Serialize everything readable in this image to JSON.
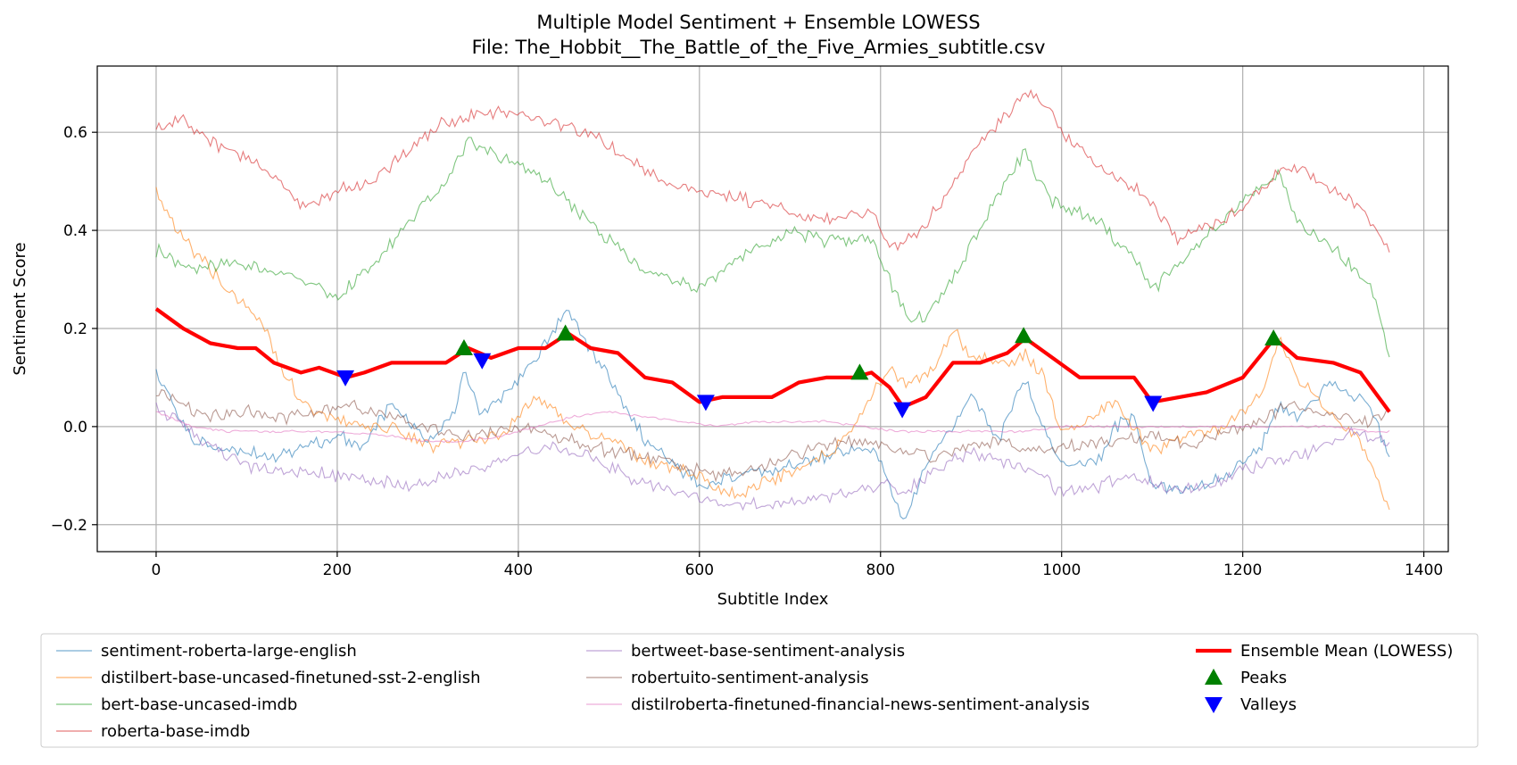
{
  "chart_data": {
    "type": "line",
    "title": "Multiple Model Sentiment + Ensemble LOWESS",
    "subtitle": "File: The_Hobbit__The_Battle_of_the_Five_Armies_subtitle.csv",
    "xlabel": "Subtitle Index",
    "ylabel": "Sentiment Score",
    "xlim": [
      -65,
      1427
    ],
    "ylim": [
      -0.255,
      0.735
    ],
    "xticks": [
      0,
      200,
      400,
      600,
      800,
      1000,
      1200,
      1400
    ],
    "xtick_labels": [
      "0",
      "200",
      "400",
      "600",
      "800",
      "1000",
      "1200",
      "1400"
    ],
    "yticks": [
      -0.2,
      0.0,
      0.2,
      0.4,
      0.6
    ],
    "ytick_labels": [
      "−0.2",
      "0.0",
      "0.2",
      "0.4",
      "0.6"
    ],
    "grid": true,
    "legend_position": "bottom",
    "series": [
      {
        "name": "sentiment-roberta-large-english",
        "color": "#1f77b4",
        "x": [
          0,
          40,
          80,
          120,
          160,
          200,
          230,
          260,
          300,
          330,
          340,
          360,
          400,
          420,
          455,
          470,
          500,
          540,
          600,
          640,
          680,
          720,
          760,
          790,
          810,
          825,
          850,
          880,
          900,
          930,
          958,
          980,
          1000,
          1040,
          1060,
          1080,
          1100,
          1140,
          1180,
          1220,
          1240,
          1260,
          1300,
          1340,
          1362
        ],
        "values": [
          0.11,
          -0.03,
          -0.04,
          -0.06,
          -0.05,
          -0.02,
          -0.04,
          0.05,
          -0.03,
          0.03,
          0.11,
          0.02,
          0.1,
          0.14,
          0.24,
          0.18,
          0.1,
          -0.03,
          -0.12,
          -0.1,
          -0.09,
          -0.07,
          -0.05,
          -0.04,
          -0.12,
          -0.2,
          -0.08,
          0.0,
          0.07,
          -0.03,
          0.1,
          0.0,
          -0.08,
          -0.07,
          0.0,
          0.02,
          -0.12,
          -0.13,
          -0.1,
          -0.04,
          0.04,
          0.02,
          0.09,
          0.04,
          -0.06
        ]
      },
      {
        "name": "distilbert-base-uncased-finetuned-sst-2-english",
        "color": "#ff7f0e",
        "x": [
          0,
          30,
          60,
          90,
          120,
          140,
          160,
          190,
          230,
          260,
          300,
          340,
          380,
          420,
          460,
          500,
          540,
          600,
          640,
          680,
          720,
          760,
          790,
          810,
          830,
          860,
          880,
          900,
          940,
          960,
          980,
          1000,
          1040,
          1060,
          1080,
          1100,
          1140,
          1180,
          1220,
          1240,
          1260,
          1300,
          1330,
          1362
        ],
        "values": [
          0.48,
          0.38,
          0.32,
          0.26,
          0.2,
          0.12,
          0.05,
          0.02,
          0.0,
          0.0,
          -0.04,
          -0.03,
          -0.02,
          0.06,
          0.0,
          -0.02,
          -0.07,
          -0.1,
          -0.14,
          -0.11,
          -0.08,
          -0.03,
          0.07,
          0.12,
          0.08,
          0.12,
          0.2,
          0.14,
          0.13,
          0.15,
          0.1,
          -0.01,
          0.03,
          0.05,
          0.0,
          -0.05,
          -0.02,
          0.0,
          0.06,
          0.18,
          0.1,
          0.02,
          -0.03,
          -0.17
        ]
      },
      {
        "name": "bert-base-uncased-imdb",
        "color": "#2ca02c",
        "x": [
          0,
          40,
          80,
          120,
          160,
          200,
          240,
          280,
          320,
          345,
          380,
          420,
          470,
          500,
          540,
          600,
          660,
          700,
          740,
          790,
          810,
          830,
          850,
          880,
          920,
          958,
          990,
          1040,
          1080,
          1100,
          1140,
          1200,
          1240,
          1260,
          1300,
          1340,
          1362
        ],
        "values": [
          0.36,
          0.32,
          0.33,
          0.32,
          0.3,
          0.26,
          0.33,
          0.42,
          0.5,
          0.58,
          0.55,
          0.52,
          0.43,
          0.38,
          0.32,
          0.28,
          0.36,
          0.4,
          0.38,
          0.38,
          0.3,
          0.22,
          0.22,
          0.3,
          0.44,
          0.56,
          0.46,
          0.42,
          0.34,
          0.28,
          0.35,
          0.46,
          0.52,
          0.42,
          0.36,
          0.3,
          0.14
        ]
      },
      {
        "name": "roberta-base-imdb",
        "color": "#d62728",
        "x": [
          0,
          30,
          60,
          100,
          140,
          160,
          200,
          240,
          280,
          320,
          360,
          400,
          440,
          480,
          520,
          560,
          600,
          640,
          680,
          720,
          760,
          790,
          810,
          830,
          850,
          880,
          920,
          960,
          980,
          1000,
          1050,
          1100,
          1130,
          1180,
          1220,
          1250,
          1290,
          1330,
          1362
        ],
        "values": [
          0.61,
          0.63,
          0.58,
          0.55,
          0.49,
          0.45,
          0.48,
          0.5,
          0.57,
          0.62,
          0.64,
          0.64,
          0.62,
          0.6,
          0.55,
          0.5,
          0.48,
          0.47,
          0.45,
          0.43,
          0.42,
          0.44,
          0.36,
          0.38,
          0.41,
          0.5,
          0.6,
          0.68,
          0.66,
          0.6,
          0.52,
          0.46,
          0.38,
          0.42,
          0.48,
          0.54,
          0.49,
          0.45,
          0.36
        ]
      },
      {
        "name": "bertweet-base-sentiment-analysis",
        "color": "#9467bd",
        "x": [
          0,
          20,
          60,
          100,
          140,
          200,
          240,
          280,
          320,
          360,
          400,
          440,
          480,
          520,
          560,
          600,
          640,
          680,
          720,
          760,
          800,
          830,
          860,
          900,
          940,
          980,
          1000,
          1040,
          1080,
          1120,
          1160,
          1200,
          1240,
          1280,
          1320,
          1362
        ],
        "values": [
          0.04,
          0.02,
          -0.04,
          -0.08,
          -0.09,
          -0.1,
          -0.11,
          -0.12,
          -0.1,
          -0.08,
          -0.06,
          -0.04,
          -0.06,
          -0.1,
          -0.13,
          -0.15,
          -0.16,
          -0.16,
          -0.15,
          -0.14,
          -0.12,
          -0.13,
          -0.09,
          -0.05,
          -0.08,
          -0.1,
          -0.14,
          -0.12,
          -0.1,
          -0.13,
          -0.12,
          -0.09,
          -0.07,
          -0.05,
          -0.01,
          -0.03
        ]
      },
      {
        "name": "robertuito-sentiment-analysis",
        "color": "#8c564b",
        "x": [
          0,
          30,
          60,
          100,
          140,
          180,
          220,
          260,
          300,
          340,
          380,
          420,
          460,
          500,
          540,
          580,
          620,
          660,
          700,
          740,
          780,
          820,
          860,
          900,
          940,
          980,
          1020,
          1060,
          1100,
          1140,
          1180,
          1220,
          1260,
          1300,
          1340,
          1362
        ],
        "values": [
          0.07,
          0.04,
          0.02,
          0.03,
          0.02,
          0.03,
          0.04,
          0.02,
          0.0,
          -0.02,
          -0.01,
          0.0,
          -0.03,
          -0.05,
          -0.06,
          -0.08,
          -0.1,
          -0.09,
          -0.06,
          -0.04,
          -0.03,
          -0.05,
          -0.06,
          -0.04,
          -0.03,
          -0.05,
          -0.04,
          -0.03,
          -0.02,
          -0.04,
          -0.01,
          0.01,
          0.05,
          0.02,
          0.01,
          0.03
        ]
      },
      {
        "name": "distilroberta-finetuned-financial-news-sentiment-analysis",
        "color": "#e377c2",
        "x": [
          0,
          40,
          80,
          120,
          160,
          200,
          260,
          300,
          340,
          380,
          420,
          460,
          500,
          540,
          580,
          620,
          660,
          700,
          740,
          780,
          820,
          860,
          900,
          960,
          1000,
          1060,
          1100,
          1160,
          1220,
          1260,
          1300,
          1340,
          1362
        ],
        "values": [
          0.03,
          0.0,
          -0.01,
          -0.01,
          -0.01,
          -0.01,
          -0.02,
          -0.03,
          -0.03,
          -0.02,
          0.0,
          0.02,
          0.03,
          0.02,
          0.01,
          0.0,
          0.01,
          0.01,
          0.01,
          0.0,
          -0.01,
          -0.01,
          -0.01,
          -0.01,
          0.0,
          0.0,
          0.0,
          0.0,
          0.0,
          0.0,
          0.0,
          -0.01,
          -0.01
        ]
      },
      {
        "name": "Ensemble Mean (LOWESS)",
        "color": "#ff0000",
        "x": [
          0,
          30,
          60,
          90,
          110,
          130,
          160,
          180,
          210,
          230,
          260,
          290,
          320,
          345,
          370,
          400,
          430,
          455,
          480,
          510,
          540,
          570,
          600,
          625,
          650,
          680,
          710,
          740,
          770,
          790,
          810,
          825,
          850,
          880,
          910,
          940,
          960,
          990,
          1020,
          1050,
          1080,
          1100,
          1130,
          1160,
          1200,
          1235,
          1260,
          1300,
          1330,
          1362
        ],
        "values": [
          0.24,
          0.2,
          0.17,
          0.16,
          0.16,
          0.13,
          0.11,
          0.12,
          0.1,
          0.11,
          0.13,
          0.13,
          0.13,
          0.16,
          0.14,
          0.16,
          0.16,
          0.19,
          0.16,
          0.15,
          0.1,
          0.09,
          0.05,
          0.06,
          0.06,
          0.06,
          0.09,
          0.1,
          0.1,
          0.11,
          0.08,
          0.04,
          0.06,
          0.13,
          0.13,
          0.15,
          0.18,
          0.14,
          0.1,
          0.1,
          0.1,
          0.05,
          0.06,
          0.07,
          0.1,
          0.18,
          0.14,
          0.13,
          0.11,
          0.03
        ]
      }
    ],
    "peaks": {
      "name": "Peaks",
      "color": "#008000",
      "x": [
        340,
        452,
        777,
        958,
        1234
      ],
      "values": [
        0.16,
        0.19,
        0.11,
        0.185,
        0.18
      ]
    },
    "valleys": {
      "name": "Valleys",
      "color": "#0000ff",
      "x": [
        209,
        360,
        607,
        824,
        1101
      ],
      "values": [
        0.1,
        0.135,
        0.05,
        0.035,
        0.048
      ]
    }
  }
}
